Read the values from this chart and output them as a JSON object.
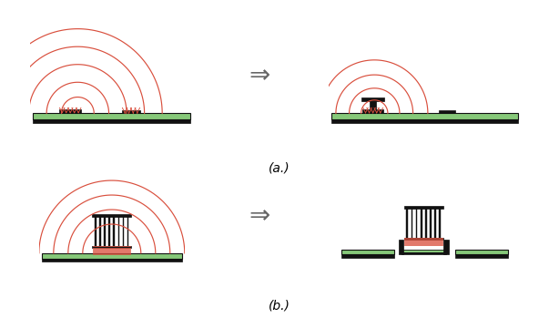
{
  "bg_color": "#ffffff",
  "green_color": "#86c879",
  "black_color": "#111111",
  "red_color": "#d94f3d",
  "arrow_color": "#666666",
  "label_a": "(a.)",
  "label_b": "(b.)",
  "font_size_label": 10,
  "fig_w": 6.14,
  "fig_h": 3.49,
  "dpi": 100
}
